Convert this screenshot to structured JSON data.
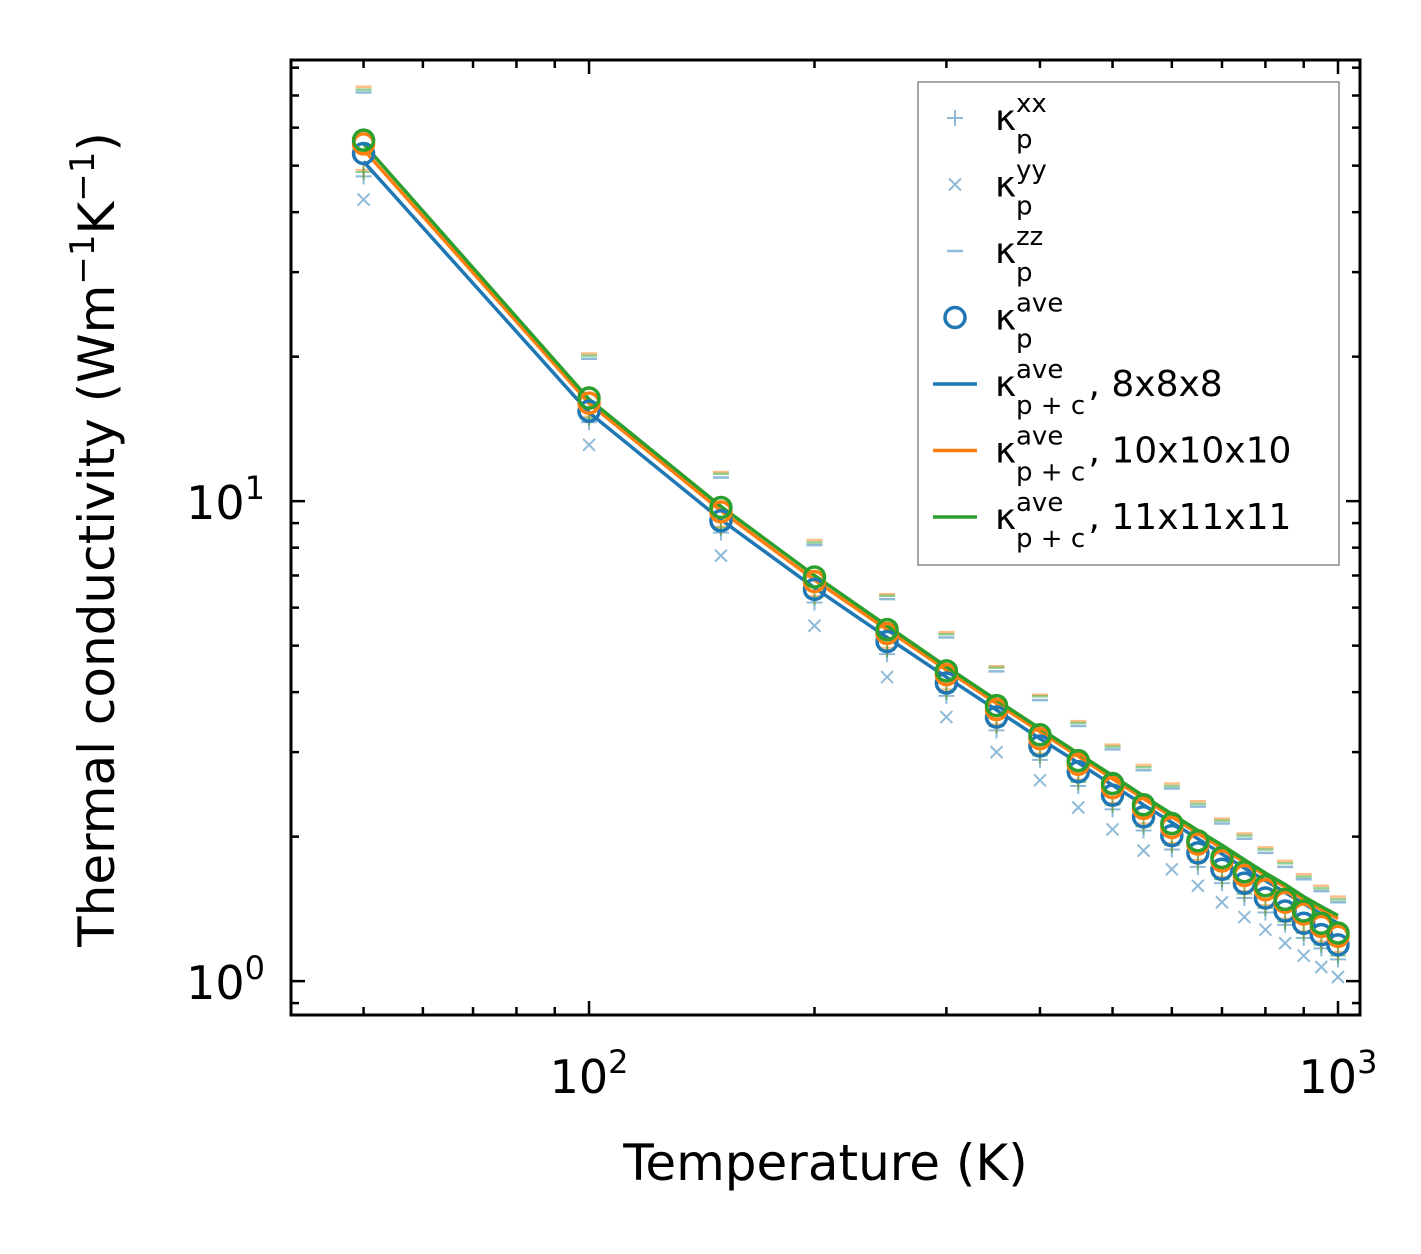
{
  "chart_data": {
    "type": "scatter",
    "xscale": "log",
    "yscale": "log",
    "xlim": [
      40,
      1070
    ],
    "ylim": [
      0.85,
      83
    ],
    "xlabel": "Temperature (K)",
    "ylabel": {
      "base": "Thermal conductivity (Wm",
      "exp1": "−1",
      "mid": "K",
      "exp2": "−1",
      "end": ")"
    },
    "xticks": [
      {
        "value": 100,
        "base": "10",
        "exp": "2"
      },
      {
        "value": 1000,
        "base": "10",
        "exp": "3"
      }
    ],
    "yticks": [
      {
        "value": 1,
        "base": "10",
        "exp": "0"
      },
      {
        "value": 10,
        "base": "10",
        "exp": "1"
      }
    ],
    "x": [
      50,
      100,
      150,
      200,
      250,
      300,
      350,
      400,
      450,
      500,
      550,
      600,
      650,
      700,
      750,
      800,
      850,
      900,
      950,
      1000
    ],
    "series": [
      {
        "name": "kp_xx",
        "kind": "marker",
        "marker": "plus",
        "color": "#1f77b4",
        "alpha": 0.5,
        "legend": true,
        "label": {
          "base": "κ",
          "sub": "p",
          "sup": "xx",
          "tail": ""
        },
        "values": [
          47.5,
          14.6,
          8.6,
          6.15,
          4.8,
          3.93,
          3.33,
          2.89,
          2.55,
          2.28,
          2.06,
          1.88,
          1.73,
          1.6,
          1.49,
          1.39,
          1.31,
          1.23,
          1.17,
          1.11
        ]
      },
      {
        "name": "kp_yy",
        "kind": "marker",
        "marker": "x",
        "color": "#1f77b4",
        "alpha": 0.5,
        "legend": true,
        "label": {
          "base": "κ",
          "sub": "p",
          "sup": "yy",
          "tail": ""
        },
        "values": [
          42.5,
          13.1,
          7.7,
          5.5,
          4.3,
          3.55,
          3.0,
          2.62,
          2.3,
          2.07,
          1.87,
          1.71,
          1.58,
          1.46,
          1.36,
          1.28,
          1.2,
          1.13,
          1.07,
          1.02
        ]
      },
      {
        "name": "kp_zz",
        "kind": "marker",
        "marker": "dash",
        "color": "#1f77b4",
        "alpha": 0.5,
        "legend": true,
        "label": {
          "base": "κ",
          "sub": "p",
          "sup": "zz",
          "tail": ""
        },
        "values": [
          71.0,
          19.8,
          11.2,
          8.1,
          6.25,
          5.2,
          4.42,
          3.85,
          3.4,
          3.04,
          2.75,
          2.52,
          2.31,
          2.13,
          1.98,
          1.85,
          1.73,
          1.63,
          1.54,
          1.46
        ]
      },
      {
        "name": "kp_xx_10",
        "kind": "marker",
        "marker": "plus",
        "color": "#ff7f0e",
        "alpha": 0.5,
        "legend": false,
        "values": [
          49.0,
          15.0,
          8.85,
          6.35,
          4.95,
          4.05,
          3.43,
          2.98,
          2.63,
          2.35,
          2.13,
          1.94,
          1.79,
          1.65,
          1.54,
          1.44,
          1.35,
          1.27,
          1.21,
          1.15
        ]
      },
      {
        "name": "kp_zz_10",
        "kind": "marker",
        "marker": "dash",
        "color": "#ff7f0e",
        "alpha": 0.5,
        "legend": false,
        "values": [
          73.0,
          20.3,
          11.5,
          8.3,
          6.4,
          5.33,
          4.53,
          3.95,
          3.48,
          3.11,
          2.82,
          2.58,
          2.37,
          2.18,
          2.03,
          1.9,
          1.78,
          1.67,
          1.58,
          1.5
        ]
      },
      {
        "name": "kp_xx_11",
        "kind": "marker",
        "marker": "plus",
        "color": "#2ca02c",
        "alpha": 0.5,
        "legend": false,
        "values": [
          48.5,
          14.9,
          8.8,
          6.3,
          4.9,
          4.0,
          3.4,
          2.95,
          2.6,
          2.33,
          2.1,
          1.92,
          1.77,
          1.63,
          1.52,
          1.42,
          1.33,
          1.26,
          1.19,
          1.13
        ]
      },
      {
        "name": "kp_zz_11",
        "kind": "marker",
        "marker": "dash",
        "color": "#2ca02c",
        "alpha": 0.5,
        "legend": false,
        "values": [
          72.0,
          20.1,
          11.4,
          8.2,
          6.35,
          5.28,
          4.5,
          3.92,
          3.45,
          3.08,
          2.79,
          2.55,
          2.34,
          2.16,
          2.01,
          1.88,
          1.76,
          1.65,
          1.56,
          1.48
        ]
      },
      {
        "name": "kp_ave",
        "kind": "marker",
        "marker": "circle",
        "color": "#1f77b4",
        "alpha": 1,
        "legend": true,
        "label": {
          "base": "κ",
          "sub": "p",
          "sup": "ave",
          "tail": ""
        },
        "values": [
          53.0,
          15.4,
          9.1,
          6.55,
          5.1,
          4.18,
          3.55,
          3.09,
          2.73,
          2.44,
          2.2,
          2.01,
          1.85,
          1.71,
          1.6,
          1.49,
          1.4,
          1.32,
          1.25,
          1.19
        ]
      },
      {
        "name": "kp_ave_10",
        "kind": "marker",
        "marker": "circle",
        "color": "#ff7f0e",
        "alpha": 1,
        "legend": false,
        "values": [
          55.5,
          16.0,
          9.5,
          6.8,
          5.3,
          4.35,
          3.68,
          3.2,
          2.83,
          2.53,
          2.29,
          2.09,
          1.93,
          1.78,
          1.66,
          1.55,
          1.46,
          1.38,
          1.3,
          1.24
        ]
      },
      {
        "name": "kp_ave_11",
        "kind": "marker",
        "marker": "circle",
        "color": "#2ca02c",
        "alpha": 1,
        "legend": false,
        "values": [
          56.5,
          16.4,
          9.7,
          6.95,
          5.4,
          4.43,
          3.75,
          3.26,
          2.88,
          2.58,
          2.33,
          2.13,
          1.96,
          1.81,
          1.69,
          1.58,
          1.48,
          1.4,
          1.32,
          1.26
        ]
      },
      {
        "name": "kpc_8",
        "kind": "line",
        "color": "#1f77b4",
        "legend": true,
        "label": {
          "base": "κ",
          "sub": "p + c",
          "sup": "ave",
          "tail": ", 8x8x8"
        },
        "values": [
          51.0,
          15.3,
          9.15,
          6.6,
          5.2,
          4.3,
          3.67,
          3.2,
          2.85,
          2.56,
          2.33,
          2.14,
          1.98,
          1.84,
          1.72,
          1.62,
          1.53,
          1.45,
          1.38,
          1.32
        ]
      },
      {
        "name": "kpc_10",
        "kind": "line",
        "color": "#ff7f0e",
        "legend": true,
        "label": {
          "base": "κ",
          "sub": "p + c",
          "sup": "ave",
          "tail": ", 10x10x10"
        },
        "values": [
          54.0,
          16.0,
          9.55,
          6.85,
          5.4,
          4.45,
          3.79,
          3.31,
          2.94,
          2.64,
          2.4,
          2.2,
          2.03,
          1.89,
          1.77,
          1.66,
          1.57,
          1.48,
          1.41,
          1.35
        ]
      },
      {
        "name": "kpc_11",
        "kind": "line",
        "color": "#2ca02c",
        "legend": true,
        "label": {
          "base": "κ",
          "sub": "p + c",
          "sup": "ave",
          "tail": ", 11x11x11"
        },
        "values": [
          55.5,
          16.3,
          9.75,
          7.0,
          5.5,
          4.52,
          3.85,
          3.36,
          2.98,
          2.68,
          2.43,
          2.23,
          2.06,
          1.92,
          1.79,
          1.68,
          1.59,
          1.5,
          1.43,
          1.37
        ]
      }
    ]
  }
}
